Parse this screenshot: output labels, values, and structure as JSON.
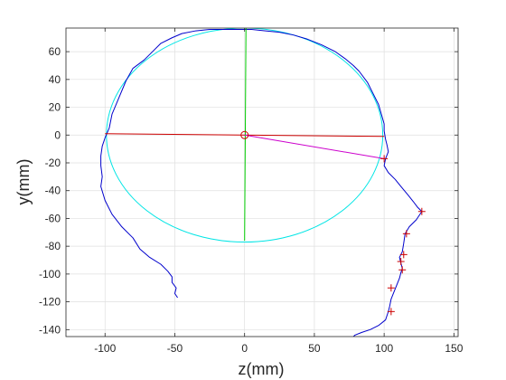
{
  "chart_data": {
    "type": "line",
    "title": "",
    "xlabel": "z(mm)",
    "ylabel": "y(mm)",
    "xlim": [
      -128,
      153
    ],
    "ylim": [
      -145,
      77
    ],
    "grid": true,
    "xticks": [
      -100,
      -50,
      0,
      50,
      100,
      150
    ],
    "yticks": [
      60,
      40,
      20,
      0,
      -20,
      -40,
      -60,
      -80,
      -100,
      -120,
      -140
    ],
    "xtick_labels": [
      "-100",
      "-50",
      "0",
      "50",
      "100",
      "150"
    ],
    "ytick_labels": [
      "60",
      "40",
      "20",
      "0",
      "-20",
      "-40",
      "-60",
      "-80",
      "-100",
      "-120",
      "-140"
    ],
    "colors": {
      "contour": "#0000cc",
      "ellipse": "#00e5e5",
      "horizontal_axis": "#cc0000",
      "vertical_axis": "#00cc00",
      "nose_line": "#cc00cc",
      "markers": "#cc0000",
      "center": "#cc0000"
    },
    "series": [
      {
        "role": "head-contour",
        "x": [
          -48,
          -50,
          -49,
          -52,
          -52,
          -55,
          -60,
          -68,
          -75,
          -80,
          -88,
          -95,
          -100,
          -103,
          -102,
          -103,
          -103,
          -102,
          -100,
          -97,
          -95,
          -90,
          -85,
          -80,
          -72,
          -65,
          -60,
          -52,
          -45,
          -35,
          -25,
          -15,
          -5,
          5,
          15,
          25,
          35,
          45,
          55,
          65,
          72,
          78,
          82,
          88,
          92,
          96,
          98,
          100,
          100,
          101,
          102,
          103,
          101,
          100,
          103,
          108,
          112,
          117,
          121,
          124,
          127,
          123,
          118,
          115,
          114,
          113,
          111,
          112,
          113,
          112,
          111,
          109,
          107,
          105,
          104,
          103,
          101,
          96,
          90,
          84,
          79,
          77
        ],
        "y": [
          -117,
          -114,
          -110,
          -106,
          -102,
          -98,
          -93,
          -88,
          -82,
          -74,
          -66,
          -57,
          -47,
          -37,
          -30,
          -22,
          -15,
          -8,
          -2,
          5,
          15,
          27,
          39,
          48,
          54,
          61,
          66,
          70,
          73,
          75,
          76,
          76,
          76,
          76,
          75,
          74,
          72,
          69,
          65,
          60,
          55,
          50,
          46,
          38,
          30,
          22,
          15,
          8,
          3,
          -3,
          -7,
          -12,
          -17,
          -22,
          -27,
          -32,
          -37,
          -43,
          -48,
          -52,
          -55,
          -61,
          -66,
          -71,
          -78,
          -84,
          -88,
          -92,
          -96,
          -99,
          -103,
          -108,
          -113,
          -118,
          -123,
          -127,
          -133,
          -137,
          -140,
          -142,
          -144,
          -146
        ]
      },
      {
        "role": "fitted-ellipse",
        "center": [
          0,
          0
        ],
        "radii": [
          99,
          77
        ]
      },
      {
        "role": "horizontal-axis-line",
        "x": [
          -100,
          100
        ],
        "y": [
          1,
          -1
        ]
      },
      {
        "role": "vertical-axis-line",
        "x": [
          1,
          0
        ],
        "y": [
          77,
          -76
        ]
      },
      {
        "role": "nose-line",
        "x": [
          0,
          100
        ],
        "y": [
          0,
          -17
        ]
      },
      {
        "role": "landmark-markers",
        "x": [
          100,
          127,
          116,
          114,
          112,
          113,
          105,
          105
        ],
        "y": [
          -17,
          -55,
          -71,
          -86,
          -91,
          -97,
          -110,
          -127
        ]
      },
      {
        "role": "center-marker",
        "x": [
          0
        ],
        "y": [
          0
        ]
      }
    ]
  }
}
